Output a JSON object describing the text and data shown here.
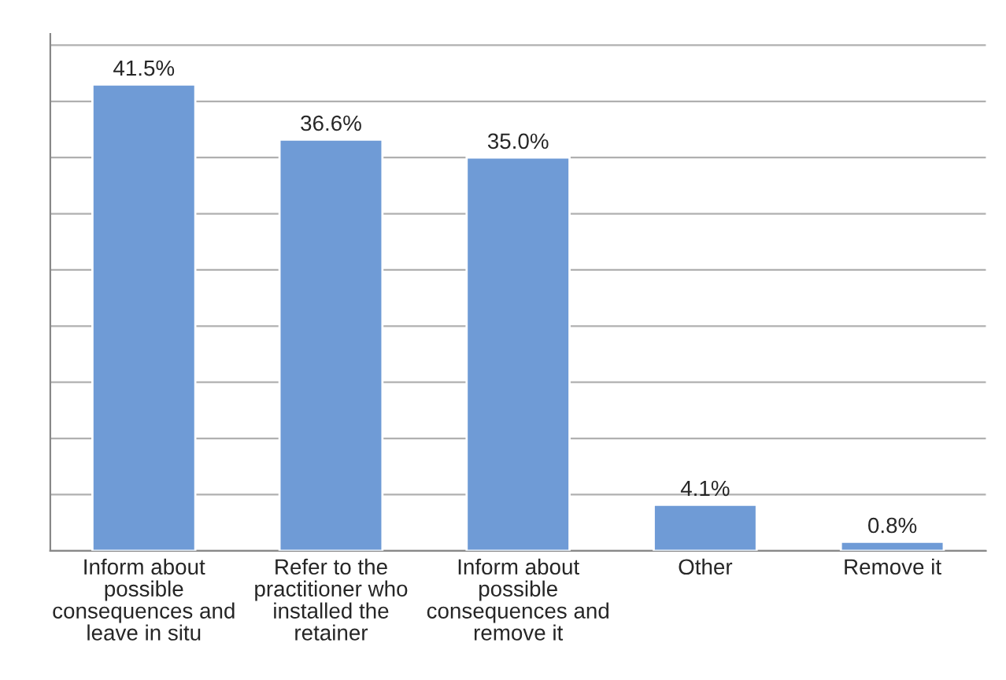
{
  "chart_data": {
    "type": "bar",
    "categories": [
      "Inform about possible consequences and leave in situ",
      "Refer to the practitioner who installed the retainer",
      "Inform about possible consequences and remove it",
      "Other",
      "Remove it"
    ],
    "values": [
      41.5,
      36.6,
      35.0,
      4.1,
      0.8
    ],
    "value_labels": [
      "41.5%",
      "36.6%",
      "35.0%",
      "4.1%",
      "0.8%"
    ],
    "color": "#6f9bd6",
    "ylim": [
      0,
      46
    ],
    "yticks": [
      {
        "value": 0,
        "label": null
      },
      {
        "value": 5,
        "label": null
      },
      {
        "value": 10,
        "label": null
      },
      {
        "value": 15,
        "label": null
      },
      {
        "value": 20,
        "label": null
      },
      {
        "value": 25,
        "label": null
      },
      {
        "value": 30,
        "label": null
      },
      {
        "value": 35,
        "label": null
      },
      {
        "value": 40,
        "label": null
      },
      {
        "value": 45,
        "label": null
      }
    ],
    "tick_labels": "x",
    "grid": "y"
  }
}
